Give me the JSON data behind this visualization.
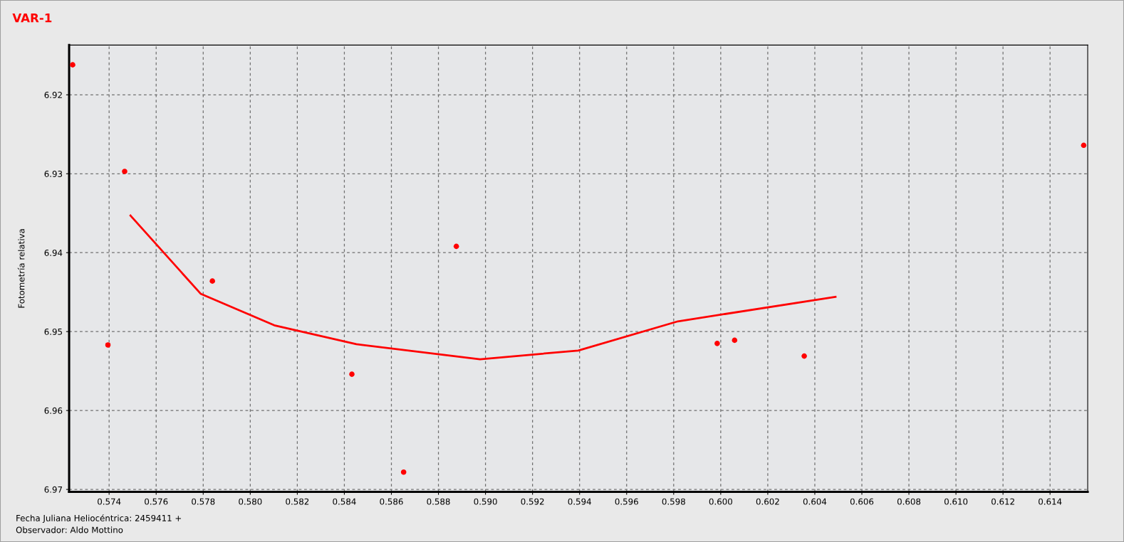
{
  "chart_data": {
    "type": "scatter",
    "title": "VAR-1",
    "ylabel": "Fotometría relativa",
    "annotations": [
      "Fecha Juliana Heliocéntrica: 2459411 +",
      "Observador: Aldo Mottino"
    ],
    "series": [
      {
        "color": "#ff0000",
        "marker": "circle",
        "x": [
          0.57245,
          0.57395,
          0.57466,
          0.57839,
          0.58432,
          0.58652,
          0.58876,
          0.59985,
          0.60059,
          0.60355,
          0.61543
        ],
        "values": [
          6.9162,
          6.9517,
          6.9297,
          6.9436,
          6.9554,
          6.9678,
          6.9392,
          6.9515,
          6.9511,
          6.9531,
          6.9264
        ]
      },
      {
        "type": "line",
        "marker": "none",
        "color": "#ff0000",
        "x": [
          0.57491,
          0.57789,
          0.58102,
          0.58451,
          0.58977,
          0.59394,
          0.59818,
          0.60488
        ],
        "values": [
          6.9353,
          6.9452,
          6.9492,
          6.9516,
          6.9535,
          6.9524,
          6.9487,
          6.9456
        ]
      }
    ],
    "xlim": [
      0.5723,
      0.6156
    ],
    "ylim": [
      6.9703,
      6.9137
    ],
    "xticks": [
      0.574,
      0.576,
      0.578,
      {
        "value": 0.58,
        "label": "0.580"
      },
      0.582,
      0.584,
      0.586,
      0.588,
      {
        "value": 0.59,
        "label": "0.590"
      },
      0.592,
      0.594,
      0.596,
      0.598,
      {
        "value": 0.6,
        "label": "0.600"
      },
      0.602,
      0.604,
      0.606,
      0.608,
      {
        "value": 0.61,
        "label": "0.610"
      },
      0.612,
      0.614
    ],
    "yticks": [
      6.92,
      6.93,
      6.94,
      6.95,
      6.96,
      6.97
    ],
    "grid": true,
    "line_style": "solid"
  }
}
